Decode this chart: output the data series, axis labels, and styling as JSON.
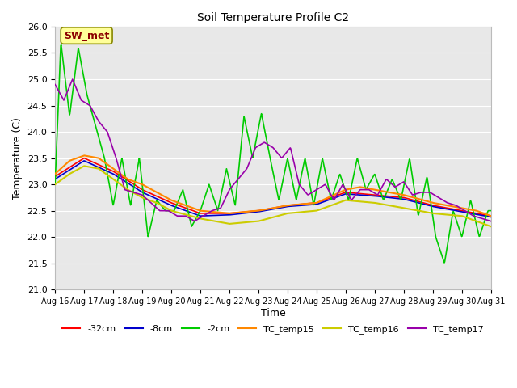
{
  "title": "Soil Temperature Profile C2",
  "xlabel": "Time",
  "ylabel": "Temperature (C)",
  "ylim": [
    21.0,
    26.0
  ],
  "background_color": "#ffffff",
  "plot_bg": "#e8e8e8",
  "annotation_text": "SW_met",
  "annotation_color": "#8b0000",
  "annotation_bg": "#ffff99",
  "series_colors": {
    "r32": "#ff0000",
    "r8": "#0000cc",
    "m2": "#00cc00",
    "tc15": "#ff8800",
    "tc16": "#cccc00",
    "tc17": "#9900aa"
  },
  "legend_labels": [
    "-32cm",
    "-8cm",
    "-2cm",
    "TC_temp15",
    "TC_temp16",
    "TC_temp17"
  ],
  "xtick_labels": [
    "Aug 16",
    "Aug 17",
    "Aug 18",
    "Aug 19",
    "Aug 20",
    "Aug 21",
    "Aug 22",
    "Aug 23",
    "Aug 24",
    "Aug 25",
    "Aug 26",
    "Aug 27",
    "Aug 28",
    "Aug 29",
    "Aug 30",
    "Aug 31"
  ]
}
